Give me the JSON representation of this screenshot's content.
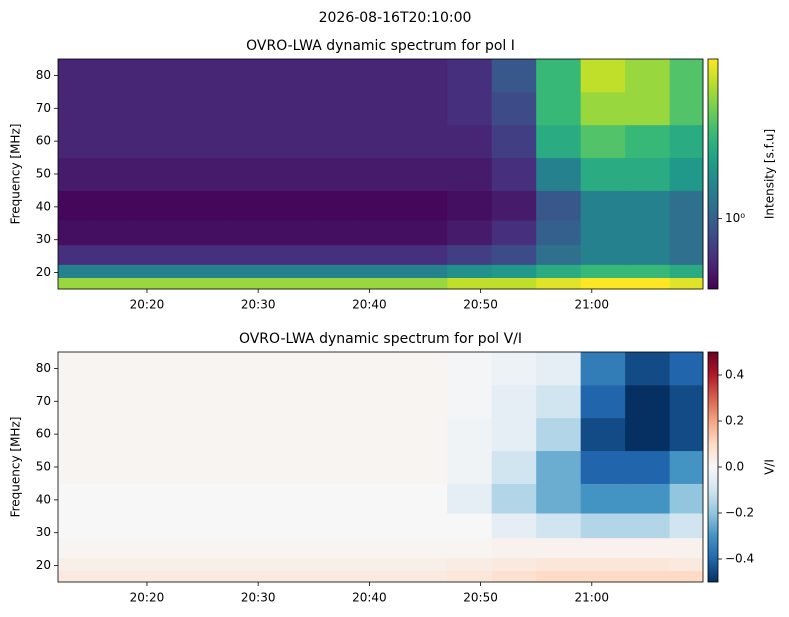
{
  "title": "2026-08-16T20:10:00",
  "chart_data": [
    {
      "type": "heatmap",
      "title": "OVRO-LWA dynamic spectrum for pol I",
      "y_label": "Frequency [MHz]",
      "colorbar_label": "Intensity [s.f.u]",
      "colormap": "viridis",
      "color_scale": "log",
      "xlim": [
        "20:12",
        "21:10"
      ],
      "xticks": [
        "20:20",
        "20:30",
        "20:40",
        "20:50",
        "21:00"
      ],
      "ylim": [
        15,
        85
      ],
      "yticks": [
        20,
        30,
        40,
        50,
        60,
        70,
        80
      ],
      "clim": [
        0.4,
        8
      ],
      "cticks": [
        {
          "value": 1,
          "label": "10⁰"
        }
      ],
      "x": [
        "20:13",
        "20:17",
        "20:21",
        "20:25",
        "20:29",
        "20:33",
        "20:37",
        "20:41",
        "20:45",
        "20:49",
        "20:53",
        "20:57",
        "21:01",
        "21:05",
        "21:09"
      ],
      "y": [
        17,
        20,
        25,
        32,
        40,
        50,
        60,
        70,
        80
      ],
      "values": [
        [
          5,
          5,
          5,
          5,
          5,
          5,
          5,
          5,
          5,
          6,
          6,
          7,
          8,
          8,
          7
        ],
        [
          1.5,
          1.5,
          1.5,
          1.5,
          1.5,
          1.5,
          1.5,
          1.5,
          1.5,
          1.8,
          2,
          2.5,
          3,
          3,
          2.5
        ],
        [
          0.6,
          0.6,
          0.6,
          0.6,
          0.6,
          0.6,
          0.6,
          0.6,
          0.6,
          0.7,
          0.8,
          1.2,
          1.5,
          1.5,
          1.2
        ],
        [
          0.45,
          0.45,
          0.45,
          0.45,
          0.45,
          0.45,
          0.45,
          0.45,
          0.45,
          0.5,
          0.6,
          1,
          1.5,
          1.5,
          1.2
        ],
        [
          0.42,
          0.42,
          0.42,
          0.42,
          0.42,
          0.42,
          0.42,
          0.42,
          0.42,
          0.45,
          0.5,
          0.9,
          1.5,
          1.5,
          1.2
        ],
        [
          0.5,
          0.5,
          0.5,
          0.5,
          0.5,
          0.5,
          0.5,
          0.5,
          0.5,
          0.5,
          0.6,
          1.5,
          2.5,
          2.5,
          2
        ],
        [
          0.55,
          0.55,
          0.55,
          0.55,
          0.55,
          0.55,
          0.55,
          0.55,
          0.55,
          0.55,
          0.7,
          2.5,
          3.5,
          3,
          2.5
        ],
        [
          0.55,
          0.55,
          0.55,
          0.55,
          0.55,
          0.55,
          0.55,
          0.55,
          0.55,
          0.6,
          0.8,
          3,
          5,
          5,
          3.5
        ],
        [
          0.55,
          0.55,
          0.55,
          0.55,
          0.55,
          0.55,
          0.55,
          0.55,
          0.55,
          0.6,
          0.9,
          3,
          6,
          5,
          3.5
        ]
      ]
    },
    {
      "type": "heatmap",
      "title": "OVRO-LWA dynamic spectrum for pol V/I",
      "y_label": "Frequency [MHz]",
      "colorbar_label": "V/I",
      "colormap": "RdBu_r",
      "color_scale": "linear",
      "xlim": [
        "20:12",
        "21:10"
      ],
      "xticks": [
        "20:20",
        "20:30",
        "20:40",
        "20:50",
        "21:00"
      ],
      "ylim": [
        15,
        85
      ],
      "yticks": [
        20,
        30,
        40,
        50,
        60,
        70,
        80
      ],
      "clim": [
        -0.5,
        0.5
      ],
      "cticks": [
        {
          "value": -0.4,
          "label": "−0.4"
        },
        {
          "value": -0.2,
          "label": "−0.2"
        },
        {
          "value": 0,
          "label": "0.0"
        },
        0.2,
        0.4
      ],
      "x": [
        "20:13",
        "20:17",
        "20:21",
        "20:25",
        "20:29",
        "20:33",
        "20:37",
        "20:41",
        "20:45",
        "20:49",
        "20:53",
        "20:57",
        "21:01",
        "21:05",
        "21:09"
      ],
      "y": [
        17,
        20,
        25,
        32,
        40,
        50,
        60,
        70,
        80
      ],
      "values": [
        [
          0.05,
          0.05,
          0.05,
          0.05,
          0.05,
          0.05,
          0.05,
          0.05,
          0.05,
          0.06,
          0.08,
          0.1,
          0.1,
          0.1,
          0.1
        ],
        [
          0.03,
          0.03,
          0.03,
          0.03,
          0.03,
          0.03,
          0.03,
          0.03,
          0.03,
          0.04,
          0.05,
          0.06,
          0.06,
          0.06,
          0.05
        ],
        [
          0.01,
          0.01,
          0.01,
          0.01,
          0.01,
          0.01,
          0.01,
          0.01,
          0.01,
          0.01,
          0.02,
          0.02,
          0.02,
          0.02,
          0.02
        ],
        [
          0,
          0,
          0,
          0,
          0,
          0,
          0,
          0,
          0,
          0,
          -0.05,
          -0.1,
          -0.15,
          -0.15,
          -0.1
        ],
        [
          0,
          0,
          0,
          0,
          0,
          0,
          0,
          0,
          0,
          -0.05,
          -0.15,
          -0.25,
          -0.3,
          -0.3,
          -0.2
        ],
        [
          0.01,
          0.01,
          0.01,
          0.01,
          0.01,
          0.01,
          0.01,
          0.01,
          0.01,
          -0.02,
          -0.1,
          -0.25,
          -0.4,
          -0.4,
          -0.3
        ],
        [
          0.01,
          0.01,
          0.01,
          0.01,
          0.01,
          0.01,
          0.01,
          0.01,
          0.01,
          -0.02,
          -0.05,
          -0.15,
          -0.45,
          -0.5,
          -0.45
        ],
        [
          0.01,
          0.01,
          0.01,
          0.01,
          0.01,
          0.01,
          0.01,
          0.01,
          0.01,
          -0.01,
          -0.05,
          -0.1,
          -0.4,
          -0.5,
          -0.45
        ],
        [
          0.01,
          0.01,
          0.01,
          0.01,
          0.01,
          0.01,
          0.01,
          0.01,
          0.01,
          -0.01,
          -0.03,
          -0.05,
          -0.35,
          -0.45,
          -0.4
        ]
      ]
    }
  ]
}
